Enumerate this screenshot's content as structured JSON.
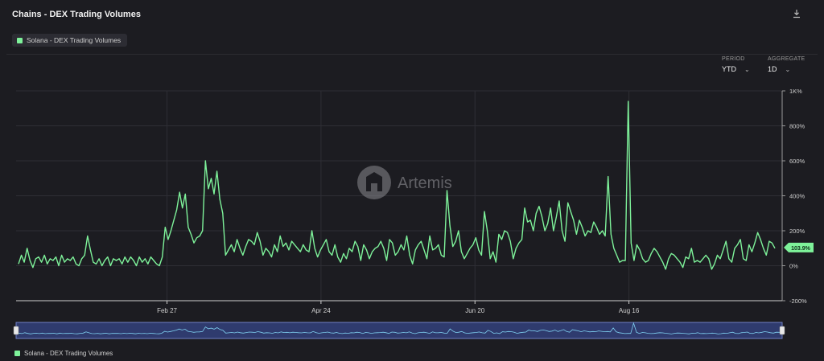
{
  "title": "Chains - DEX Trading Volumes",
  "legend_label": "Solana - DEX Trading Volumes",
  "period": {
    "label": "PERIOD",
    "value": "YTD"
  },
  "aggregate": {
    "label": "AGGREGATE",
    "value": "1D"
  },
  "watermark": "Artemis",
  "current_value_label": "103.9%",
  "icons": {
    "download": "download-icon",
    "chevron": "chevron-down-icon",
    "logo": "artemis-logo-icon"
  },
  "colors": {
    "line": "#7ef29a",
    "background": "#1c1c21",
    "grid": "#2e2e35",
    "navigator_fill": "#2f3b6e"
  },
  "chart_data": {
    "type": "line",
    "title": "",
    "xlabel": "",
    "ylabel": "",
    "x_ticks": [
      "Feb 27",
      "Apr 24",
      "Jun 20",
      "Aug 16"
    ],
    "y_ticks": [
      "1K%",
      "800%",
      "600%",
      "400%",
      "200%",
      "0%",
      "-200%"
    ],
    "ylim": [
      -200,
      1000
    ],
    "grid": true,
    "series": [
      {
        "name": "Solana - DEX Trading Volumes",
        "values": [
          10,
          60,
          20,
          100,
          30,
          -10,
          40,
          50,
          20,
          60,
          10,
          40,
          30,
          50,
          0,
          60,
          20,
          40,
          30,
          50,
          10,
          0,
          40,
          60,
          170,
          90,
          20,
          10,
          40,
          0,
          30,
          50,
          0,
          40,
          30,
          40,
          10,
          50,
          20,
          50,
          30,
          0,
          50,
          20,
          40,
          10,
          50,
          30,
          10,
          0,
          50,
          220,
          150,
          200,
          260,
          320,
          420,
          330,
          410,
          220,
          180,
          130,
          160,
          170,
          200,
          600,
          440,
          500,
          410,
          540,
          380,
          300,
          60,
          90,
          120,
          80,
          150,
          100,
          60,
          110,
          150,
          140,
          120,
          190,
          140,
          60,
          100,
          80,
          50,
          120,
          80,
          170,
          110,
          130,
          90,
          140,
          120,
          100,
          80,
          120,
          90,
          80,
          200,
          100,
          50,
          90,
          120,
          150,
          80,
          60,
          120,
          50,
          20,
          70,
          40,
          100,
          80,
          140,
          110,
          30,
          120,
          90,
          40,
          80,
          100,
          110,
          140,
          100,
          30,
          150,
          130,
          60,
          80,
          120,
          90,
          170,
          60,
          10,
          90,
          120,
          140,
          90,
          40,
          170,
          90,
          100,
          120,
          60,
          50,
          430,
          230,
          110,
          140,
          200,
          80,
          40,
          70,
          100,
          120,
          160,
          90,
          60,
          310,
          200,
          40,
          80,
          20,
          180,
          150,
          200,
          190,
          140,
          40,
          100,
          130,
          150,
          330,
          250,
          260,
          200,
          300,
          340,
          280,
          200,
          240,
          330,
          200,
          280,
          370,
          200,
          140,
          360,
          310,
          260,
          180,
          260,
          220,
          170,
          200,
          190,
          250,
          220,
          180,
          200,
          170,
          510,
          180,
          100,
          60,
          20,
          30,
          30,
          940,
          130,
          30,
          120,
          90,
          40,
          20,
          30,
          70,
          100,
          80,
          50,
          20,
          -20,
          40,
          70,
          60,
          40,
          20,
          -10,
          50,
          40,
          100,
          20,
          30,
          20,
          40,
          60,
          40,
          -20,
          10,
          60,
          40,
          90,
          140,
          40,
          20,
          100,
          120,
          150,
          40,
          30,
          120,
          80,
          130,
          190,
          150,
          100,
          60,
          140,
          130,
          100
        ]
      }
    ]
  }
}
